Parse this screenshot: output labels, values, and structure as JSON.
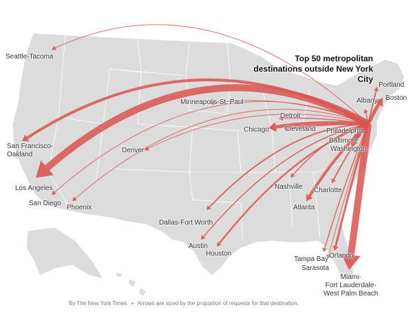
{
  "title": "Top 50 metropolitan destinations outside New York City",
  "cities": [
    {
      "label": "Seattle-Tacoma"
    },
    {
      "label": "San Francisco-\nOakland"
    },
    {
      "label": "Los Angeles"
    },
    {
      "label": "San Diego"
    },
    {
      "label": "Phoenix"
    },
    {
      "label": "Denver"
    },
    {
      "label": "Minneapolis-St. Paul"
    },
    {
      "label": "Chicago"
    },
    {
      "label": "Detroit"
    },
    {
      "label": "Cleveland"
    },
    {
      "label": "Dallas-Fort Worth"
    },
    {
      "label": "Austin"
    },
    {
      "label": "Houston"
    },
    {
      "label": "Nashville"
    },
    {
      "label": "Atlanta"
    },
    {
      "label": "Charlotte"
    },
    {
      "label": "Tampa Bay"
    },
    {
      "label": "Orlando"
    },
    {
      "label": "Sarasota"
    },
    {
      "label": "Miami-\nFort Lauderdale-\nWest Palm Beach"
    },
    {
      "label": "Philadelphia"
    },
    {
      "label": "Baltimore"
    },
    {
      "label": "Washington"
    },
    {
      "label": "Albany"
    },
    {
      "label": "Portland"
    },
    {
      "label": "Boston"
    }
  ],
  "footer": {
    "credit": "By The New York Times",
    "note": "Arrows are sized by the proportion of requests for that destination."
  }
}
